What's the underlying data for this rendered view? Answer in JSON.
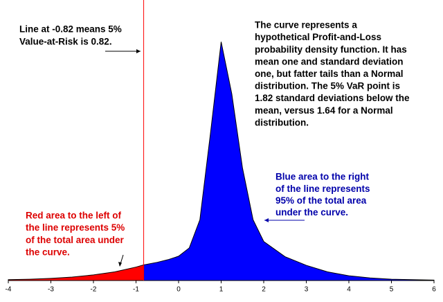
{
  "chart_data": {
    "type": "area",
    "x": [
      -4,
      -3.5,
      -3,
      -2.5,
      -2,
      -1.5,
      -1,
      -0.82,
      -0.5,
      -0.25,
      0,
      0.25,
      0.5,
      0.75,
      1,
      1.25,
      1.5,
      1.75,
      2,
      2.5,
      3,
      3.5,
      4,
      4.5,
      5,
      5.5,
      6
    ],
    "values": [
      0.002,
      0.003,
      0.005,
      0.008,
      0.013,
      0.02,
      0.031,
      0.036,
      0.042,
      0.048,
      0.056,
      0.075,
      0.14,
      0.34,
      0.55,
      0.43,
      0.26,
      0.14,
      0.09,
      0.055,
      0.035,
      0.02,
      0.011,
      0.006,
      0.003,
      0.002,
      0.001
    ],
    "var_line": -0.82,
    "left_color": "#ff0000",
    "right_color": "#0000ff",
    "line_color": "#ff0000",
    "xlim": [
      -4,
      6
    ],
    "xticks": [
      -4,
      -3,
      -2,
      -1,
      0,
      1,
      2,
      3,
      4,
      5,
      6
    ],
    "ylim": [
      0,
      0.6
    ],
    "annotations": [
      {
        "lines": [
          "Line at -0.82 means 5%",
          "Value-at-Risk is 0.82."
        ],
        "color": "#000000"
      },
      {
        "lines": [
          "The curve represents a",
          "hypothetical Profit-and-Loss",
          "probability density function. It has",
          "mean one and standard deviation",
          "one, but fatter tails than a Normal",
          "distribution. The 5% VaR point is",
          "1.82 standard deviations below the",
          "mean, versus 1.64 for a Normal",
          "distribution."
        ],
        "color": "#000000"
      },
      {
        "lines": [
          "Blue area to the right",
          "of the line represents",
          "95% of the total area",
          "under the curve."
        ],
        "color": "#0000aa"
      },
      {
        "lines": [
          "Red area to the left of",
          "the line represents 5%",
          "of the total area under",
          "the curve."
        ],
        "color": "#dd0000"
      }
    ]
  }
}
